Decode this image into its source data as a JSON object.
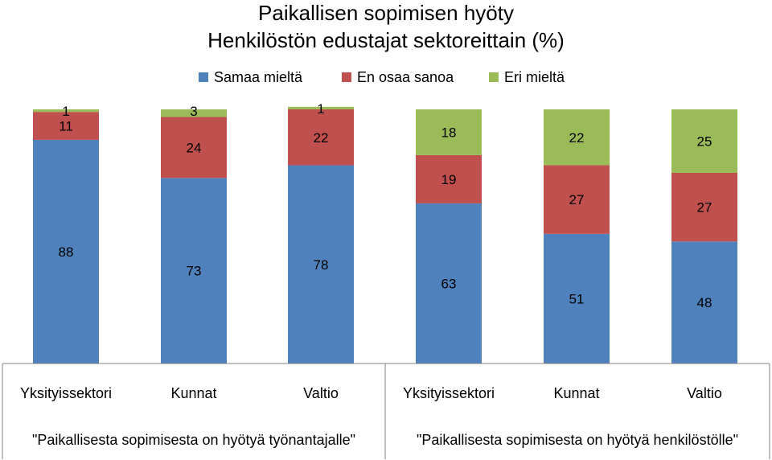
{
  "chart_data": {
    "type": "bar",
    "stacked": true,
    "title": "Paikallisen sopimisen hyöty",
    "subtitle": "Henkilöstön edustajat sektoreittain (%)",
    "legend": {
      "position": "top",
      "entries": [
        "Samaa mieltä",
        "En osaa sanoa",
        "Eri mieltä"
      ]
    },
    "colors": {
      "Samaa mieltä": "#4f81bd",
      "En osaa sanoa": "#c0504d",
      "Eri mieltä": "#9bbb59"
    },
    "categories": [
      "Yksityissektori",
      "Kunnat",
      "Valtio",
      "Yksityissektori",
      "Kunnat",
      "Valtio"
    ],
    "groups": [
      {
        "label": "\"Paikallisesta sopimisesta on hyötyä työnantajalle\"",
        "categories": [
          "Yksityissektori",
          "Kunnat",
          "Valtio"
        ]
      },
      {
        "label": "\"Paikallisesta sopimisesta on hyötyä henkilöstölle\"",
        "categories": [
          "Yksityissektori",
          "Kunnat",
          "Valtio"
        ]
      }
    ],
    "series": [
      {
        "name": "Samaa mieltä",
        "values": [
          88,
          73,
          78,
          63,
          51,
          48
        ]
      },
      {
        "name": "En osaa sanoa",
        "values": [
          11,
          24,
          22,
          19,
          27,
          27
        ]
      },
      {
        "name": "Eri mieltä",
        "values": [
          1,
          3,
          1,
          18,
          22,
          25
        ]
      }
    ],
    "ylim": [
      0,
      100
    ],
    "grid": false
  }
}
